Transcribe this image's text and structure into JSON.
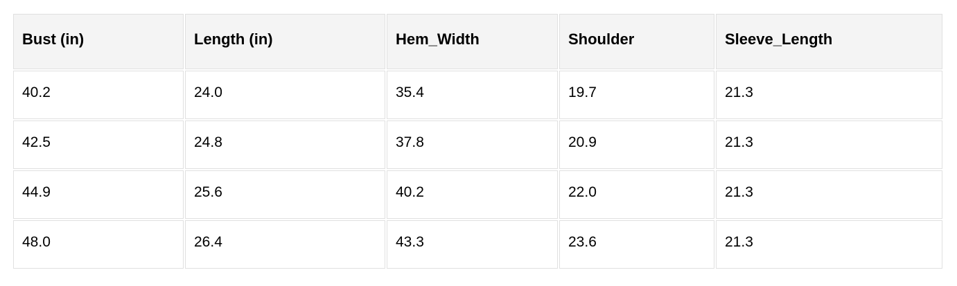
{
  "table": {
    "columns": [
      "Bust (in)",
      "Length (in)",
      "Hem_Width",
      "Shoulder",
      "Sleeve_Length"
    ],
    "rows": [
      [
        "40.2",
        "24.0",
        "35.4",
        "19.7",
        "21.3"
      ],
      [
        "42.5",
        "24.8",
        "37.8",
        "20.9",
        "21.3"
      ],
      [
        "44.9",
        "25.6",
        "40.2",
        "22.0",
        "21.3"
      ],
      [
        "48.0",
        "26.4",
        "43.3",
        "23.6",
        "21.3"
      ]
    ],
    "colors": {
      "header_bg": "#f4f4f4",
      "body_bg": "#ffffff",
      "border": "#e0e0e0",
      "text": "#000000"
    }
  }
}
